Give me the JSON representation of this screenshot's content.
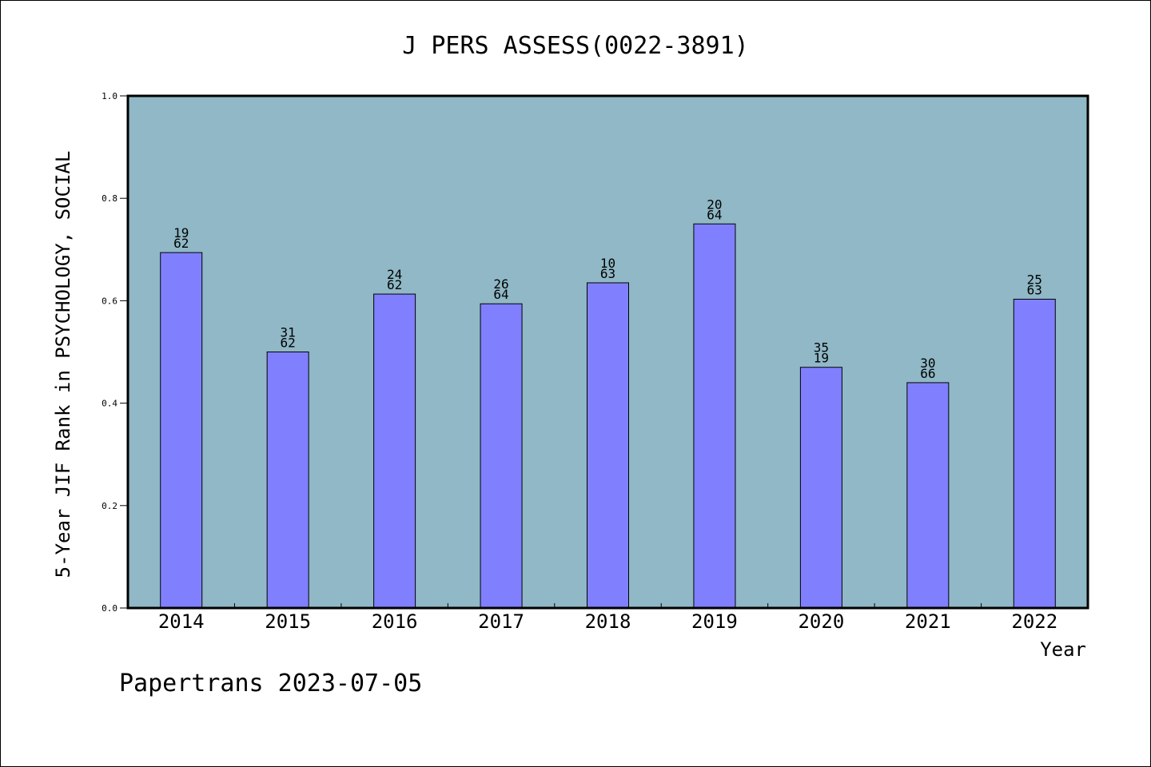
{
  "chart_data": {
    "type": "bar",
    "title": "J PERS ASSESS(0022-3891)",
    "xlabel": "Year",
    "ylabel": "5-Year JIF Rank in PSYCHOLOGY, SOCIAL",
    "ylim": [
      0.0,
      1.0
    ],
    "yticks": [
      "0.0",
      "0.2",
      "0.4",
      "0.6",
      "0.8",
      "1.0"
    ],
    "categories": [
      "2014",
      "2015",
      "2016",
      "2017",
      "2018",
      "2019",
      "2020",
      "2021",
      "2022"
    ],
    "values": [
      0.694,
      0.5,
      0.613,
      0.594,
      0.635,
      0.75,
      0.47,
      0.44,
      0.603
    ],
    "labels_top": [
      "19",
      "31",
      "24",
      "26",
      "10",
      "20",
      "35",
      "30",
      "25"
    ],
    "labels_bottom": [
      "62",
      "62",
      "62",
      "64",
      "63",
      "64",
      "19",
      "66",
      "63"
    ],
    "grid": false,
    "colors": {
      "plot_bg": "#90b8c6",
      "bar": "#8080ff",
      "bar_stroke": "#000000"
    }
  },
  "footer": {
    "text": "Papertrans 2023-07-05"
  }
}
